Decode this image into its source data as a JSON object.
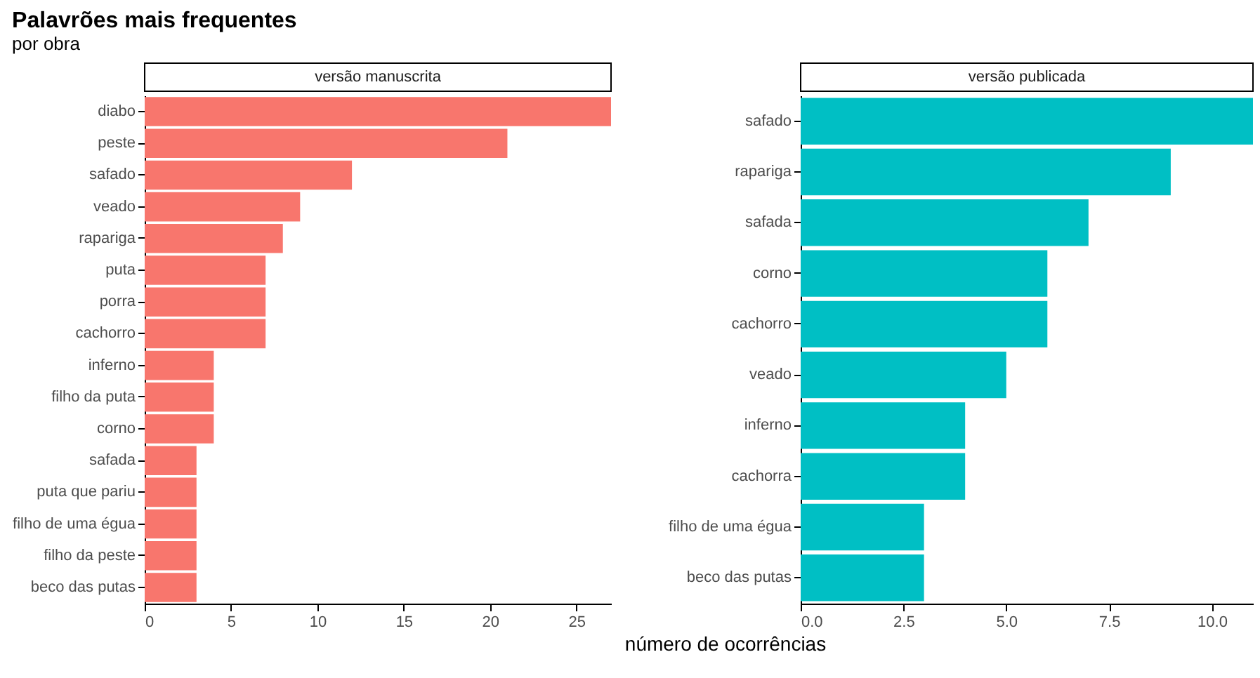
{
  "chart_data": [
    {
      "type": "bar",
      "orientation": "horizontal",
      "title": "Palavrões mais frequentes",
      "subtitle": "por obra",
      "annotations": [
        "versão manuscrita"
      ],
      "categories": [
        "diabo",
        "peste",
        "safado",
        "veado",
        "rapariga",
        "puta",
        "porra",
        "cachorro",
        "inferno",
        "filho da puta",
        "corno",
        "safada",
        "puta que pariu",
        "filho de uma égua",
        "filho da peste",
        "beco das putas"
      ],
      "values": [
        27,
        21,
        12,
        9,
        8,
        7,
        7,
        7,
        4,
        4,
        4,
        3,
        3,
        3,
        3,
        3
      ],
      "color": "#f8766d",
      "xlim": [
        0,
        27
      ],
      "xticks": [
        0,
        5,
        10,
        15,
        20,
        25
      ],
      "grid": false,
      "legend": false
    },
    {
      "type": "bar",
      "orientation": "horizontal",
      "annotations": [
        "versão publicada"
      ],
      "xlabel": "número de ocorrências",
      "categories": [
        "safado",
        "rapariga",
        "safada",
        "corno",
        "cachorro",
        "veado",
        "inferno",
        "cachorra",
        "filho de uma égua",
        "beco das putas"
      ],
      "values": [
        11,
        9,
        7,
        6,
        6,
        5,
        4,
        4,
        3,
        3
      ],
      "color": "#00bfc4",
      "xlim": [
        0,
        11
      ],
      "xticks": [
        {
          "value": 0,
          "label": "0.0"
        },
        {
          "value": 2.5,
          "label": "2.5"
        },
        {
          "value": 5,
          "label": "5.0"
        },
        {
          "value": 7.5,
          "label": "7.5"
        },
        {
          "value": 10,
          "label": "10.0"
        }
      ],
      "grid": false,
      "legend": false
    }
  ]
}
